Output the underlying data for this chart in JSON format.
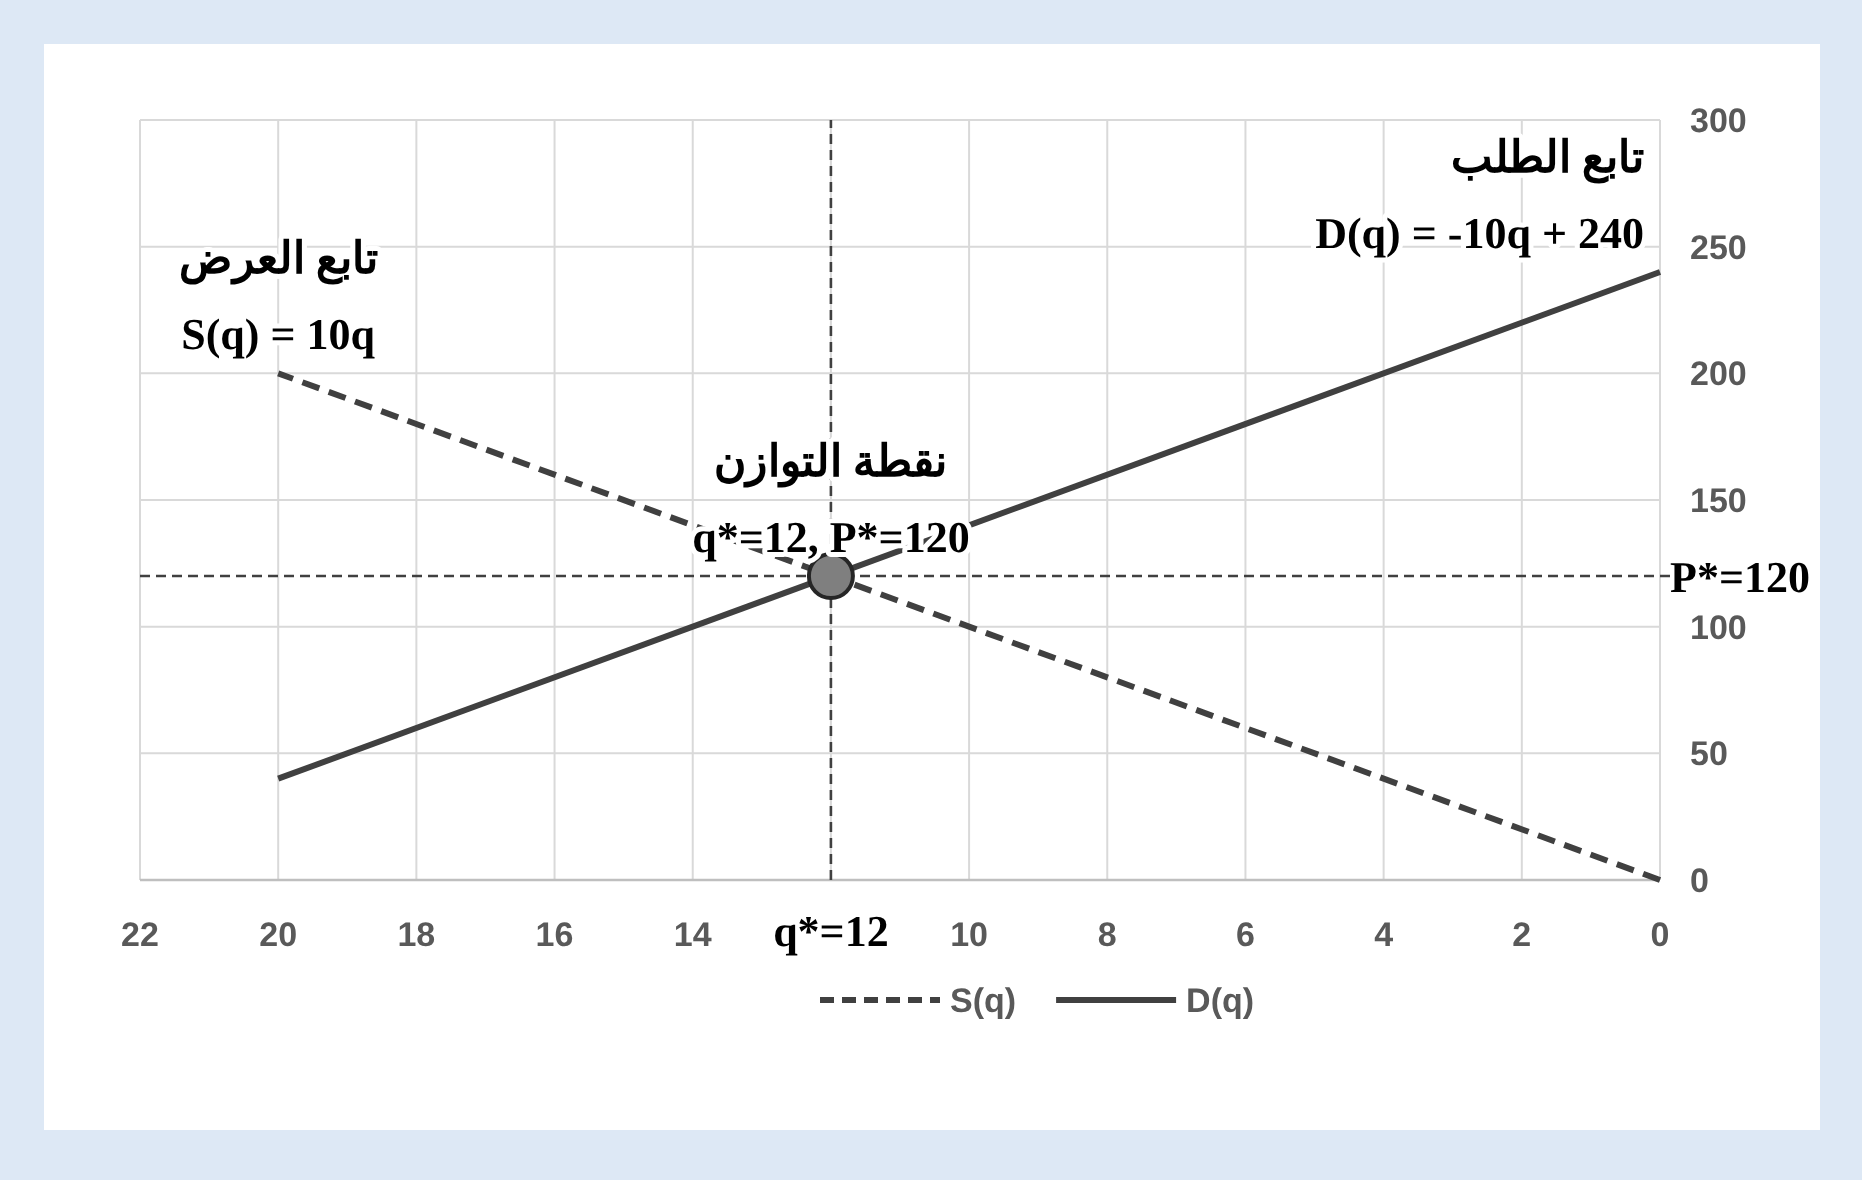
{
  "chart_data": {
    "type": "line",
    "xlim": [
      22,
      0
    ],
    "xticks": [
      22,
      20,
      18,
      16,
      14,
      {
        "value": 12,
        "label": null
      },
      10,
      8,
      6,
      4,
      2,
      0
    ],
    "ylim": [
      0,
      300
    ],
    "yticks": [
      0,
      50,
      100,
      150,
      200,
      250,
      300
    ],
    "grid": true,
    "legend": "bottom",
    "series": [
      {
        "name": "S(q)",
        "color": "#404040",
        "line_style": "dashed",
        "x": [
          0,
          20
        ],
        "values": [
          0,
          200
        ]
      },
      {
        "name": "D(q)",
        "color": "#404040",
        "line_style": "solid",
        "x": [
          0,
          20
        ],
        "values": [
          240,
          40
        ]
      },
      {
        "type": "scatter",
        "color": "#7f7f7f",
        "marker": "circle",
        "x": [
          12
        ],
        "values": [
          120
        ]
      }
    ],
    "ref_lines": [
      {
        "axis": "x",
        "value": 12,
        "label": "q*=12",
        "line_style": "dashed",
        "color": "#404040"
      },
      {
        "axis": "y",
        "value": 120,
        "label": "P*=120",
        "line_style": "dashed",
        "color": "#404040"
      }
    ],
    "annotations": [
      {
        "text": "تابع العرض",
        "x": 20,
        "y": 200
      },
      {
        "text": "S(q) = 10q",
        "x": 20,
        "y": 200
      },
      {
        "text": "نقطة التوازن",
        "x": 12,
        "y": 120
      },
      {
        "text": "q*=12, P*=120",
        "x": 12,
        "y": 120
      },
      {
        "text": "تابع الطلب",
        "x": 0,
        "y": 240
      },
      {
        "text": "D(q) = -10q + 240",
        "x": 0,
        "y": 240
      }
    ]
  }
}
